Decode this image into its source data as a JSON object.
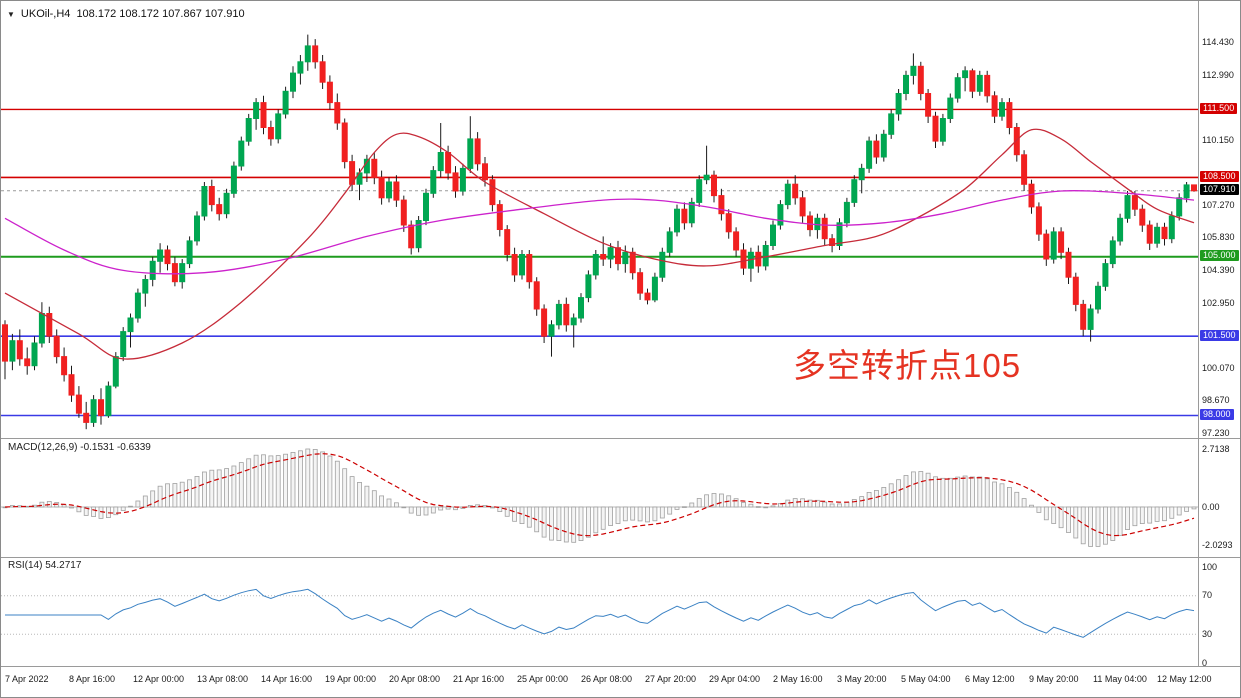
{
  "window": {
    "dropdown_icon": "▼",
    "symbol_title": "UKOil-,H4",
    "ohlc_line": "108.172 108.172 107.867 107.910"
  },
  "colors": {
    "up": "#00a651",
    "down": "#f02020",
    "wick": "#1a1a1a",
    "macd_hist_fill": "#f4f4f4",
    "macd_hist_stroke": "#a0a0a0",
    "macd_signal": "#cc0000",
    "rsi_line": "#3b82c4",
    "axis_text": "#1a1a1a",
    "level_dotted": "#b8b8b8",
    "divider": "#9a9a9a",
    "current_price_line": "#9a9a9a"
  },
  "chart_data": {
    "type": "candlestick",
    "symbol": "UKOil-",
    "timeframe": "H4",
    "ohlc": {
      "open": "108.172",
      "high": "108.172",
      "low": "107.867",
      "close": "107.910"
    },
    "price_axis": {
      "top_price": 116.28,
      "bottom_price": 97.01,
      "ticks": [
        "114.430",
        "112.990",
        "110.150",
        "107.270",
        "105.830",
        "104.390",
        "102.950",
        "100.070",
        "98.670",
        "97.230"
      ],
      "current_price": {
        "price": 107.91,
        "text": "107.910",
        "bg": "#000000"
      }
    },
    "hlines": [
      {
        "price": 111.5,
        "text": "111.500",
        "color": "#d40000",
        "width": 1.4
      },
      {
        "price": 108.5,
        "text": "108.500",
        "color": "#d40000",
        "width": 1.6
      },
      {
        "price": 105.0,
        "text": "105.000",
        "color": "#1e9b1e",
        "width": 2
      },
      {
        "price": 101.5,
        "text": "101.500",
        "color": "#3a3ae6",
        "width": 1.6
      },
      {
        "price": 98.0,
        "text": "98.000",
        "color": "#3a3ae6",
        "width": 1.6
      }
    ],
    "time_labels": [
      "7 Apr 2022",
      "8 Apr 16:00",
      "12 Apr 00:00",
      "13 Apr 08:00",
      "14 Apr 16:00",
      "19 Apr 00:00",
      "20 Apr 08:00",
      "21 Apr 16:00",
      "25 Apr 00:00",
      "26 Apr 08:00",
      "27 Apr 20:00",
      "29 Apr 04:00",
      "2 May 16:00",
      "3 May 20:00",
      "5 May 04:00",
      "6 May 12:00",
      "9 May 20:00",
      "11 May 04:00",
      "12 May 12:00"
    ],
    "candles": [
      [
        102.0,
        102.2,
        99.6,
        100.4
      ],
      [
        100.4,
        101.6,
        100.0,
        101.3
      ],
      [
        101.3,
        101.8,
        100.2,
        100.5
      ],
      [
        100.5,
        101.0,
        99.8,
        100.2
      ],
      [
        100.2,
        101.5,
        100.0,
        101.2
      ],
      [
        101.2,
        103.0,
        101.0,
        102.5
      ],
      [
        102.5,
        102.8,
        101.2,
        101.5
      ],
      [
        101.5,
        101.8,
        100.3,
        100.6
      ],
      [
        100.6,
        101.0,
        99.5,
        99.8
      ],
      [
        99.8,
        100.2,
        98.6,
        98.9
      ],
      [
        98.9,
        99.3,
        97.9,
        98.1
      ],
      [
        98.1,
        98.6,
        97.4,
        97.7
      ],
      [
        97.7,
        98.9,
        97.5,
        98.7
      ],
      [
        98.7,
        99.2,
        97.6,
        98.0
      ],
      [
        98.0,
        99.5,
        97.9,
        99.3
      ],
      [
        99.3,
        100.8,
        99.2,
        100.6
      ],
      [
        100.6,
        101.9,
        100.4,
        101.7
      ],
      [
        101.7,
        102.5,
        101.0,
        102.3
      ],
      [
        102.3,
        103.6,
        102.1,
        103.4
      ],
      [
        103.4,
        104.2,
        102.8,
        104.0
      ],
      [
        104.0,
        105.0,
        103.7,
        104.8
      ],
      [
        104.8,
        105.6,
        104.3,
        105.3
      ],
      [
        105.3,
        105.5,
        104.4,
        104.7
      ],
      [
        104.7,
        105.0,
        103.7,
        103.9
      ],
      [
        103.9,
        104.9,
        103.6,
        104.7
      ],
      [
        104.7,
        105.9,
        104.5,
        105.7
      ],
      [
        105.7,
        107.0,
        105.5,
        106.8
      ],
      [
        106.8,
        108.3,
        106.6,
        108.1
      ],
      [
        108.1,
        108.4,
        107.0,
        107.3
      ],
      [
        107.3,
        107.6,
        106.6,
        106.9
      ],
      [
        106.9,
        108.0,
        106.7,
        107.8
      ],
      [
        107.8,
        109.2,
        107.6,
        109.0
      ],
      [
        109.0,
        110.3,
        108.8,
        110.1
      ],
      [
        110.1,
        111.3,
        109.9,
        111.1
      ],
      [
        111.1,
        112.0,
        110.6,
        111.8
      ],
      [
        111.8,
        112.1,
        110.4,
        110.7
      ],
      [
        110.7,
        111.0,
        109.9,
        110.2
      ],
      [
        110.2,
        111.5,
        110.0,
        111.3
      ],
      [
        111.3,
        112.5,
        111.1,
        112.3
      ],
      [
        112.3,
        113.4,
        112.0,
        113.1
      ],
      [
        113.1,
        113.9,
        112.6,
        113.6
      ],
      [
        113.6,
        114.8,
        113.2,
        114.3
      ],
      [
        114.3,
        114.6,
        113.3,
        113.6
      ],
      [
        113.6,
        113.9,
        112.4,
        112.7
      ],
      [
        112.7,
        113.0,
        111.5,
        111.8
      ],
      [
        111.8,
        112.2,
        110.6,
        110.9
      ],
      [
        110.9,
        111.1,
        108.9,
        109.2
      ],
      [
        109.2,
        109.5,
        107.9,
        108.2
      ],
      [
        108.2,
        108.9,
        107.5,
        108.7
      ],
      [
        108.7,
        109.5,
        108.3,
        109.3
      ],
      [
        109.3,
        109.6,
        108.2,
        108.5
      ],
      [
        108.5,
        108.8,
        107.3,
        107.6
      ],
      [
        107.6,
        108.5,
        107.4,
        108.3
      ],
      [
        108.3,
        108.6,
        107.2,
        107.5
      ],
      [
        107.5,
        107.7,
        106.1,
        106.4
      ],
      [
        106.4,
        106.6,
        105.1,
        105.4
      ],
      [
        105.4,
        106.8,
        105.2,
        106.6
      ],
      [
        106.6,
        108.0,
        106.4,
        107.8
      ],
      [
        107.8,
        109.0,
        107.6,
        108.8
      ],
      [
        108.8,
        110.9,
        108.5,
        109.6
      ],
      [
        109.6,
        109.9,
        108.4,
        108.7
      ],
      [
        108.7,
        109.0,
        107.6,
        107.9
      ],
      [
        107.9,
        109.1,
        107.7,
        108.9
      ],
      [
        108.9,
        111.2,
        108.7,
        110.2
      ],
      [
        110.2,
        110.5,
        108.8,
        109.1
      ],
      [
        109.1,
        109.4,
        108.1,
        108.4
      ],
      [
        108.4,
        108.6,
        107.0,
        107.3
      ],
      [
        107.3,
        107.5,
        105.9,
        106.2
      ],
      [
        106.2,
        106.4,
        104.8,
        105.1
      ],
      [
        105.1,
        105.4,
        103.9,
        104.2
      ],
      [
        104.2,
        105.3,
        104.0,
        105.1
      ],
      [
        105.1,
        105.3,
        103.6,
        103.9
      ],
      [
        103.9,
        104.1,
        102.4,
        102.7
      ],
      [
        102.7,
        102.9,
        101.2,
        101.5
      ],
      [
        101.5,
        102.2,
        100.6,
        102.0
      ],
      [
        102.0,
        103.1,
        101.8,
        102.9
      ],
      [
        102.9,
        103.2,
        101.7,
        102.0
      ],
      [
        102.0,
        102.5,
        101.0,
        102.3
      ],
      [
        102.3,
        103.4,
        102.1,
        103.2
      ],
      [
        103.2,
        104.4,
        103.0,
        104.2
      ],
      [
        104.2,
        105.3,
        104.0,
        105.1
      ],
      [
        105.1,
        105.9,
        104.6,
        104.9
      ],
      [
        104.9,
        105.6,
        104.5,
        105.4
      ],
      [
        105.4,
        105.7,
        104.4,
        104.7
      ],
      [
        104.7,
        105.5,
        104.3,
        105.2
      ],
      [
        105.2,
        105.4,
        104.0,
        104.3
      ],
      [
        104.3,
        104.5,
        103.1,
        103.4
      ],
      [
        103.4,
        103.6,
        102.9,
        103.1
      ],
      [
        103.1,
        104.3,
        103.0,
        104.1
      ],
      [
        104.1,
        105.4,
        103.9,
        105.2
      ],
      [
        105.2,
        106.3,
        105.0,
        106.1
      ],
      [
        106.1,
        107.3,
        105.9,
        107.1
      ],
      [
        107.1,
        107.4,
        106.2,
        106.5
      ],
      [
        106.5,
        107.6,
        106.3,
        107.4
      ],
      [
        107.4,
        108.6,
        107.2,
        108.4
      ],
      [
        108.4,
        109.9,
        108.2,
        108.6
      ],
      [
        108.6,
        108.8,
        107.4,
        107.7
      ],
      [
        107.7,
        108.0,
        106.6,
        106.9
      ],
      [
        106.9,
        107.1,
        105.8,
        106.1
      ],
      [
        106.1,
        106.3,
        105.0,
        105.3
      ],
      [
        105.3,
        105.6,
        104.2,
        104.5
      ],
      [
        104.5,
        105.4,
        103.9,
        105.2
      ],
      [
        105.2,
        105.5,
        104.3,
        104.6
      ],
      [
        104.6,
        105.7,
        104.4,
        105.5
      ],
      [
        105.5,
        106.6,
        105.3,
        106.4
      ],
      [
        106.4,
        107.5,
        106.2,
        107.3
      ],
      [
        107.3,
        108.4,
        107.1,
        108.2
      ],
      [
        108.2,
        108.6,
        107.3,
        107.6
      ],
      [
        107.6,
        107.9,
        106.5,
        106.8
      ],
      [
        106.8,
        107.0,
        105.9,
        106.2
      ],
      [
        106.2,
        106.9,
        105.8,
        106.7
      ],
      [
        106.7,
        106.9,
        105.5,
        105.8
      ],
      [
        105.8,
        106.0,
        105.2,
        105.5
      ],
      [
        105.5,
        106.7,
        105.3,
        106.5
      ],
      [
        106.5,
        107.6,
        106.3,
        107.4
      ],
      [
        107.4,
        108.6,
        107.2,
        108.4
      ],
      [
        108.4,
        109.1,
        107.8,
        108.9
      ],
      [
        108.9,
        110.3,
        108.7,
        110.1
      ],
      [
        110.1,
        110.4,
        109.1,
        109.4
      ],
      [
        109.4,
        110.6,
        109.2,
        110.4
      ],
      [
        110.4,
        111.5,
        110.2,
        111.3
      ],
      [
        111.3,
        112.4,
        111.0,
        112.2
      ],
      [
        112.2,
        113.2,
        111.9,
        113.0
      ],
      [
        113.0,
        113.97,
        112.6,
        113.4
      ],
      [
        113.4,
        113.6,
        111.9,
        112.2
      ],
      [
        112.2,
        112.4,
        110.9,
        111.2
      ],
      [
        111.2,
        111.4,
        109.8,
        110.1
      ],
      [
        110.1,
        111.3,
        109.9,
        111.1
      ],
      [
        111.1,
        112.2,
        110.9,
        112.0
      ],
      [
        112.0,
        113.1,
        111.8,
        112.9
      ],
      [
        112.9,
        113.4,
        112.3,
        113.2
      ],
      [
        113.2,
        113.3,
        112.0,
        112.3
      ],
      [
        112.3,
        113.2,
        112.1,
        113.0
      ],
      [
        113.0,
        113.2,
        111.8,
        112.1
      ],
      [
        112.1,
        112.3,
        110.9,
        111.2
      ],
      [
        111.2,
        112.0,
        111.0,
        111.8
      ],
      [
        111.8,
        112.0,
        110.4,
        110.7
      ],
      [
        110.7,
        110.9,
        109.2,
        109.5
      ],
      [
        109.5,
        109.7,
        107.9,
        108.2
      ],
      [
        108.2,
        108.4,
        106.9,
        107.2
      ],
      [
        107.2,
        107.4,
        105.7,
        106.0
      ],
      [
        106.0,
        106.2,
        104.6,
        104.9
      ],
      [
        104.9,
        106.3,
        104.7,
        106.1
      ],
      [
        106.1,
        106.3,
        104.9,
        105.2
      ],
      [
        105.2,
        105.4,
        103.8,
        104.1
      ],
      [
        104.1,
        104.3,
        102.6,
        102.9
      ],
      [
        102.9,
        103.1,
        101.5,
        101.8
      ],
      [
        101.8,
        102.9,
        101.26,
        102.7
      ],
      [
        102.7,
        103.9,
        102.5,
        103.7
      ],
      [
        103.7,
        104.9,
        103.5,
        104.7
      ],
      [
        104.7,
        105.9,
        104.5,
        105.7
      ],
      [
        105.7,
        106.9,
        105.5,
        106.7
      ],
      [
        106.7,
        107.9,
        106.5,
        107.7
      ],
      [
        107.7,
        107.9,
        106.8,
        107.1
      ],
      [
        107.1,
        107.3,
        106.1,
        106.4
      ],
      [
        106.4,
        106.6,
        105.3,
        105.6
      ],
      [
        105.6,
        106.5,
        105.4,
        106.3
      ],
      [
        106.3,
        106.5,
        105.5,
        105.8
      ],
      [
        105.8,
        107.0,
        105.6,
        106.8
      ],
      [
        106.8,
        107.8,
        106.6,
        107.6
      ],
      [
        107.6,
        108.3,
        107.4,
        108.17
      ],
      [
        108.17,
        108.17,
        107.87,
        107.91
      ]
    ],
    "overlays": [
      {
        "name": "ma-fast-red",
        "color": "#c62b39",
        "points": [
          [
            0,
            103.4
          ],
          [
            10,
            101.6
          ],
          [
            16,
            100.5
          ],
          [
            24,
            101.2
          ],
          [
            32,
            103.0
          ],
          [
            41,
            105.8
          ],
          [
            46,
            107.8
          ],
          [
            50,
            109.6
          ],
          [
            53,
            110.4
          ],
          [
            56,
            110.3
          ],
          [
            60,
            109.6
          ],
          [
            65,
            108.3
          ],
          [
            73,
            106.9
          ],
          [
            81,
            105.6
          ],
          [
            88,
            104.9
          ],
          [
            95,
            104.6
          ],
          [
            103,
            105.0
          ],
          [
            111,
            105.5
          ],
          [
            118,
            105.9
          ],
          [
            124,
            106.8
          ],
          [
            130,
            108.0
          ],
          [
            135,
            109.5
          ],
          [
            139,
            110.6
          ],
          [
            143,
            110.2
          ],
          [
            147,
            109.2
          ],
          [
            152,
            108.0
          ],
          [
            156,
            107.1
          ],
          [
            161,
            106.5
          ]
        ]
      },
      {
        "name": "ma-slow-magenta",
        "color": "#cc22cc",
        "points": [
          [
            0,
            106.7
          ],
          [
            8,
            105.3
          ],
          [
            16,
            104.4
          ],
          [
            27,
            104.3
          ],
          [
            38,
            104.9
          ],
          [
            49,
            105.9
          ],
          [
            59,
            106.6
          ],
          [
            70,
            107.1
          ],
          [
            81,
            107.5
          ],
          [
            88,
            107.5
          ],
          [
            95,
            107.2
          ],
          [
            103,
            106.7
          ],
          [
            111,
            106.4
          ],
          [
            119,
            106.5
          ],
          [
            127,
            106.9
          ],
          [
            135,
            107.5
          ],
          [
            143,
            107.9
          ],
          [
            152,
            107.8
          ],
          [
            161,
            107.5
          ]
        ]
      }
    ],
    "annotation": {
      "text": "多空转折点105",
      "color": "#e53322"
    },
    "indicators": [
      {
        "name": "macd",
        "label": "MACD(12,26,9)",
        "values": "-0.1531 -0.6339",
        "fast": 12,
        "slow": 26,
        "signal": 9,
        "axis_ticks": [
          "2.7138",
          "0.00",
          "-2.0293"
        ]
      },
      {
        "name": "rsi",
        "label": "RSI(14)",
        "value": "54.2717",
        "period": 14,
        "axis_ticks": [
          "100",
          "70",
          "30",
          "0"
        ],
        "levels": [
          70,
          30
        ]
      }
    ]
  }
}
